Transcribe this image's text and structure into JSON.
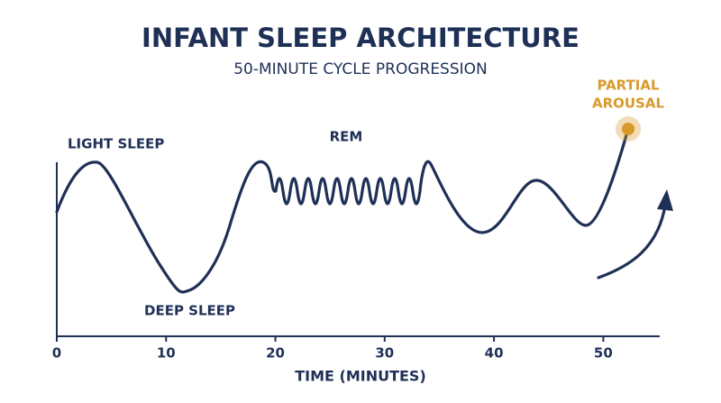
{
  "chart_data": {
    "type": "line",
    "title": "INFANT SLEEP ARCHITECTURE",
    "subtitle": "50-MINUTE CYCLE PROGRESSION",
    "x_label": "TIME (MINUTES)",
    "annotations": [
      "LIGHT SLEEP",
      "DEEP SLEEP",
      "REM",
      "PARTIAL",
      "AROUSAL"
    ],
    "xlim": [
      0,
      55
    ],
    "xticks": [
      0,
      10,
      20,
      30,
      40,
      50
    ],
    "color": "#1f3057",
    "accent_color": "#d89a2a"
  }
}
